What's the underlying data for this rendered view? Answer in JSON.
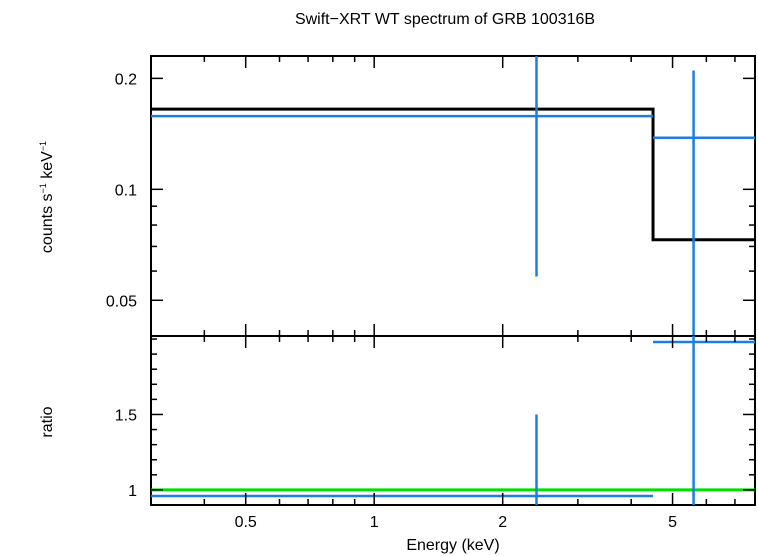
{
  "chart_data": {
    "type": "line",
    "title": "Swift−XRT WT spectrum of GRB 100316B",
    "xlabel": "Energy (keV)",
    "x_scale": "log",
    "xlim": [
      0.3,
      7.8
    ],
    "x_ticks": [
      {
        "value": 0.5,
        "label": "0.5"
      },
      {
        "value": 1,
        "label": "1"
      },
      {
        "value": 2,
        "label": "2"
      },
      {
        "value": 5,
        "label": "5"
      }
    ],
    "colors": {
      "axes": "#000000",
      "data": "#1a7fe0",
      "model": "#000000",
      "unity": "#00e000"
    },
    "panels": [
      {
        "id": "spectrum",
        "ylabel_main": "counts s",
        "ylabel_sup1": "−1",
        "ylabel_mid": " keV",
        "ylabel_sup2": "−1",
        "y_scale": "log",
        "ylim": [
          0.04,
          0.23
        ],
        "y_ticks": [
          {
            "value": 0.05,
            "label": "0.05"
          },
          {
            "value": 0.1,
            "label": "0.1"
          },
          {
            "value": 0.2,
            "label": "0.2"
          }
        ],
        "data_points": [
          {
            "x": 2.4,
            "x_lo": 0.3,
            "x_hi": 4.5,
            "y": 0.158,
            "y_lo": 0.058,
            "y_hi": 0.23
          },
          {
            "x": 5.6,
            "x_lo": 4.5,
            "x_hi": 7.8,
            "y": 0.138,
            "y_lo": 0.04,
            "y_hi": 0.21
          }
        ],
        "model_steps": [
          {
            "x_lo": 0.3,
            "x_hi": 4.5,
            "y": 0.165
          },
          {
            "x_lo": 4.5,
            "x_hi": 7.8,
            "y": 0.073
          }
        ]
      },
      {
        "id": "ratio",
        "ylabel": "ratio",
        "y_scale": "linear",
        "ylim": [
          0.9,
          2.02
        ],
        "y_ticks": [
          {
            "value": 1,
            "label": "1"
          },
          {
            "value": 1.5,
            "label": "1.5"
          }
        ],
        "reference_line": 1,
        "data_points": [
          {
            "x": 2.4,
            "x_lo": 0.3,
            "x_hi": 4.5,
            "y": 0.96,
            "y_lo": 0.9,
            "y_hi": 1.5
          },
          {
            "x": 5.6,
            "x_lo": 4.5,
            "x_hi": 7.8,
            "y": 1.98,
            "y_lo": 0.9,
            "y_hi": 2.02
          }
        ]
      }
    ]
  }
}
